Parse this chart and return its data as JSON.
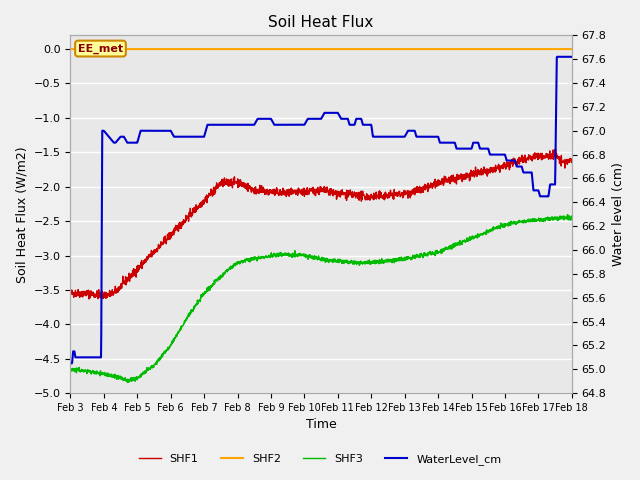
{
  "title": "Soil Heat Flux",
  "xlabel": "Time",
  "ylabel_left": "Soil Heat Flux (W/m2)",
  "ylabel_right": "Water level (cm)",
  "fig_bg": "#f0f0f0",
  "plot_bg": "#e8e8e8",
  "grid_color": "#ffffff",
  "ylim_left": [
    -5.0,
    0.2
  ],
  "ylim_right": [
    64.8,
    67.8
  ],
  "yticks_left": [
    0.0,
    -0.5,
    -1.0,
    -1.5,
    -2.0,
    -2.5,
    -3.0,
    -3.5,
    -4.0,
    -4.5,
    -5.0
  ],
  "yticks_right": [
    64.8,
    65.0,
    65.2,
    65.4,
    65.6,
    65.8,
    66.0,
    66.2,
    66.4,
    66.6,
    66.8,
    67.0,
    67.2,
    67.4,
    67.6,
    67.8
  ],
  "xtick_labels": [
    "Feb 3",
    "Feb 4",
    "Feb 5",
    "Feb 6",
    "Feb 7",
    "Feb 8",
    "Feb 9",
    "Feb 10",
    "Feb 11",
    "Feb 12",
    "Feb 13",
    "Feb 14",
    "Feb 15",
    "Feb 16",
    "Feb 17",
    "Feb 18"
  ],
  "annotation_text": "EE_met",
  "annotation_color": "#8b0000",
  "annotation_bg": "#ffff99",
  "annotation_border": "#cc8800",
  "shf2_color": "#ffa500",
  "shf1_color": "#cc0000",
  "shf3_color": "#00bb00",
  "water_color": "#0000cc",
  "legend_labels": [
    "SHF1",
    "SHF2",
    "SHF3",
    "WaterLevel_cm"
  ]
}
